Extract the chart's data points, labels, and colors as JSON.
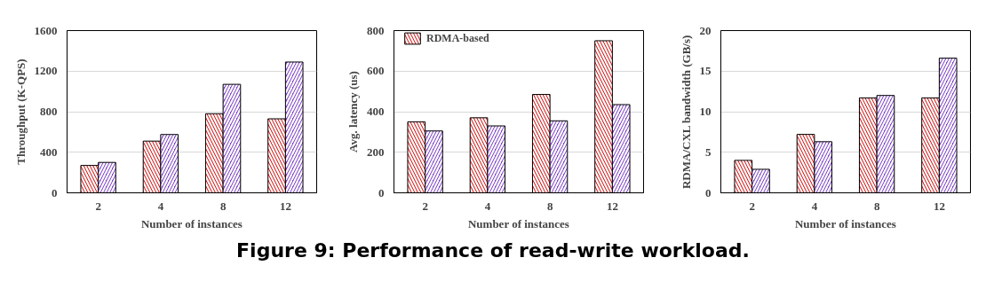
{
  "chart_data": [
    {
      "type": "bar",
      "xlabel": "Number of instances",
      "ylabel": "Throughput (K-QPS)",
      "categories": [
        "2",
        "4",
        "8",
        "12"
      ],
      "ylim": [
        0,
        1600
      ],
      "yticks": [
        0,
        400,
        800,
        1200,
        1600
      ],
      "grid": "y",
      "legend": false,
      "series": [
        {
          "color": "#d01010",
          "values": [
            270,
            510,
            780,
            730
          ]
        },
        {
          "color": "#7a3ec8",
          "values": [
            300,
            575,
            1070,
            1290
          ]
        }
      ]
    },
    {
      "type": "bar",
      "xlabel": "Number of instances",
      "ylabel": "Avg. latency (us)",
      "categories": [
        "2",
        "4",
        "8",
        "12"
      ],
      "ylim": [
        0,
        800
      ],
      "yticks": [
        0,
        200,
        400,
        600,
        800
      ],
      "grid": "y",
      "legend": "top",
      "series": [
        {
          "name": "RDMA-based",
          "color": "#d01010",
          "values": [
            350,
            370,
            485,
            750
          ]
        },
        {
          "color": "#7a3ec8",
          "values": [
            305,
            330,
            355,
            435
          ]
        }
      ],
      "annotations": [
        "Figure 9: Performance of read-write workload."
      ]
    },
    {
      "type": "bar",
      "xlabel": "Number of instances",
      "ylabel": "RDMA/CXL bandwidth (GB/s)",
      "categories": [
        "2",
        "4",
        "8",
        "12"
      ],
      "ylim": [
        0,
        20
      ],
      "yticks": [
        0,
        5,
        10,
        15,
        20
      ],
      "grid": "y",
      "legend": false,
      "series": [
        {
          "color": "#d01010",
          "values": [
            4,
            7.2,
            11.7,
            11.7
          ]
        },
        {
          "color": "#7a3ec8",
          "values": [
            2.9,
            6.3,
            12,
            16.6
          ]
        }
      ]
    }
  ]
}
